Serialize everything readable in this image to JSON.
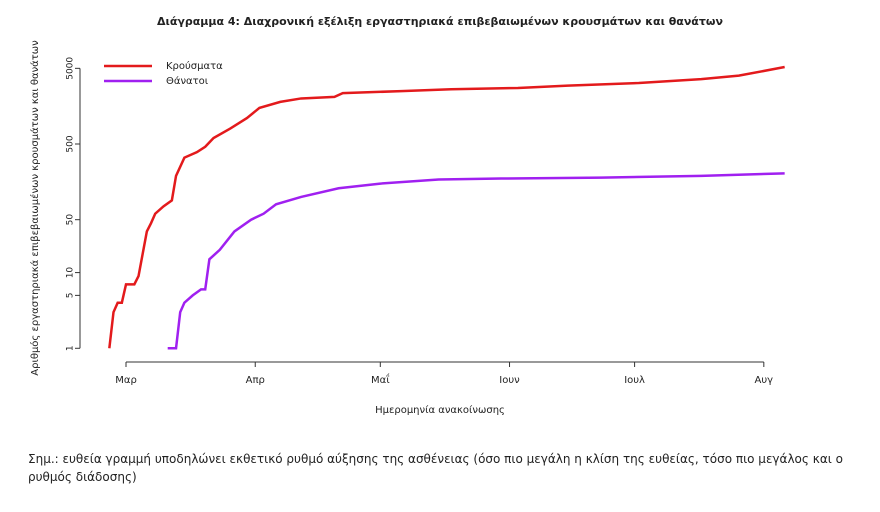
{
  "chart_data": {
    "type": "line",
    "title": "Διάγραμμα 4: Διαχρονική εξέλιξη εργαστηριακά επιβεβαιωμένων κρουσμάτων και θανάτων",
    "x_label": "Ημερομηνία ανακοίνωσης",
    "y_label": "Αριθμός εργαστηριακά επιβεβαιωμένων κρουσμάτων και θανάτων",
    "log_y": true,
    "xlim": [
      -6,
      160
    ],
    "xticks": [
      {
        "value": 0,
        "label": "Μαρ"
      },
      {
        "value": 31,
        "label": "Απρ"
      },
      {
        "value": 61,
        "label": "Μαΐ"
      },
      {
        "value": 92,
        "label": "Ιουν"
      },
      {
        "value": 122,
        "label": "Ιουλ"
      },
      {
        "value": 153,
        "label": "Αυγ"
      }
    ],
    "ylim": [
      0.7,
      7500
    ],
    "yticks": [
      1,
      5,
      10,
      50,
      500,
      5000
    ],
    "legend": "top-left",
    "series": [
      {
        "name": "Κρούσματα",
        "color": "#e31a1c",
        "x": [
          -4,
          -3,
          -2,
          -1,
          0,
          2,
          3,
          5,
          6,
          7,
          9,
          11,
          12,
          14,
          17,
          19,
          21,
          25,
          29,
          32,
          37,
          42,
          50,
          52,
          66,
          78,
          94,
          106,
          123,
          138,
          147,
          158
        ],
        "values": [
          1,
          3,
          4,
          4,
          7,
          7,
          9,
          35,
          45,
          60,
          75,
          90,
          190,
          330,
          390,
          460,
          600,
          800,
          1100,
          1500,
          1800,
          2000,
          2100,
          2350,
          2500,
          2650,
          2750,
          2950,
          3200,
          3600,
          4000,
          5200
        ]
      },
      {
        "name": "Θάνατοι",
        "color": "#a020f0",
        "x": [
          10,
          12,
          13,
          14,
          16,
          18,
          19,
          20,
          22.5,
          26,
          30,
          33,
          36,
          42,
          51,
          61,
          75,
          90,
          114,
          138,
          158
        ],
        "values": [
          1,
          1,
          3,
          4,
          5,
          6,
          6,
          15,
          20,
          35,
          50,
          60,
          80,
          100,
          130,
          150,
          170,
          175,
          180,
          190,
          205
        ]
      }
    ]
  },
  "note": "Σημ.: ευθεία γραμμή υποδηλώνει εκθετικό ρυθμό αύξησης της ασθένειας (όσο πιο μεγάλη η κλίση της ευθείας, τόσο πιο μεγάλος και ο ρυθμός διάδοσης)"
}
